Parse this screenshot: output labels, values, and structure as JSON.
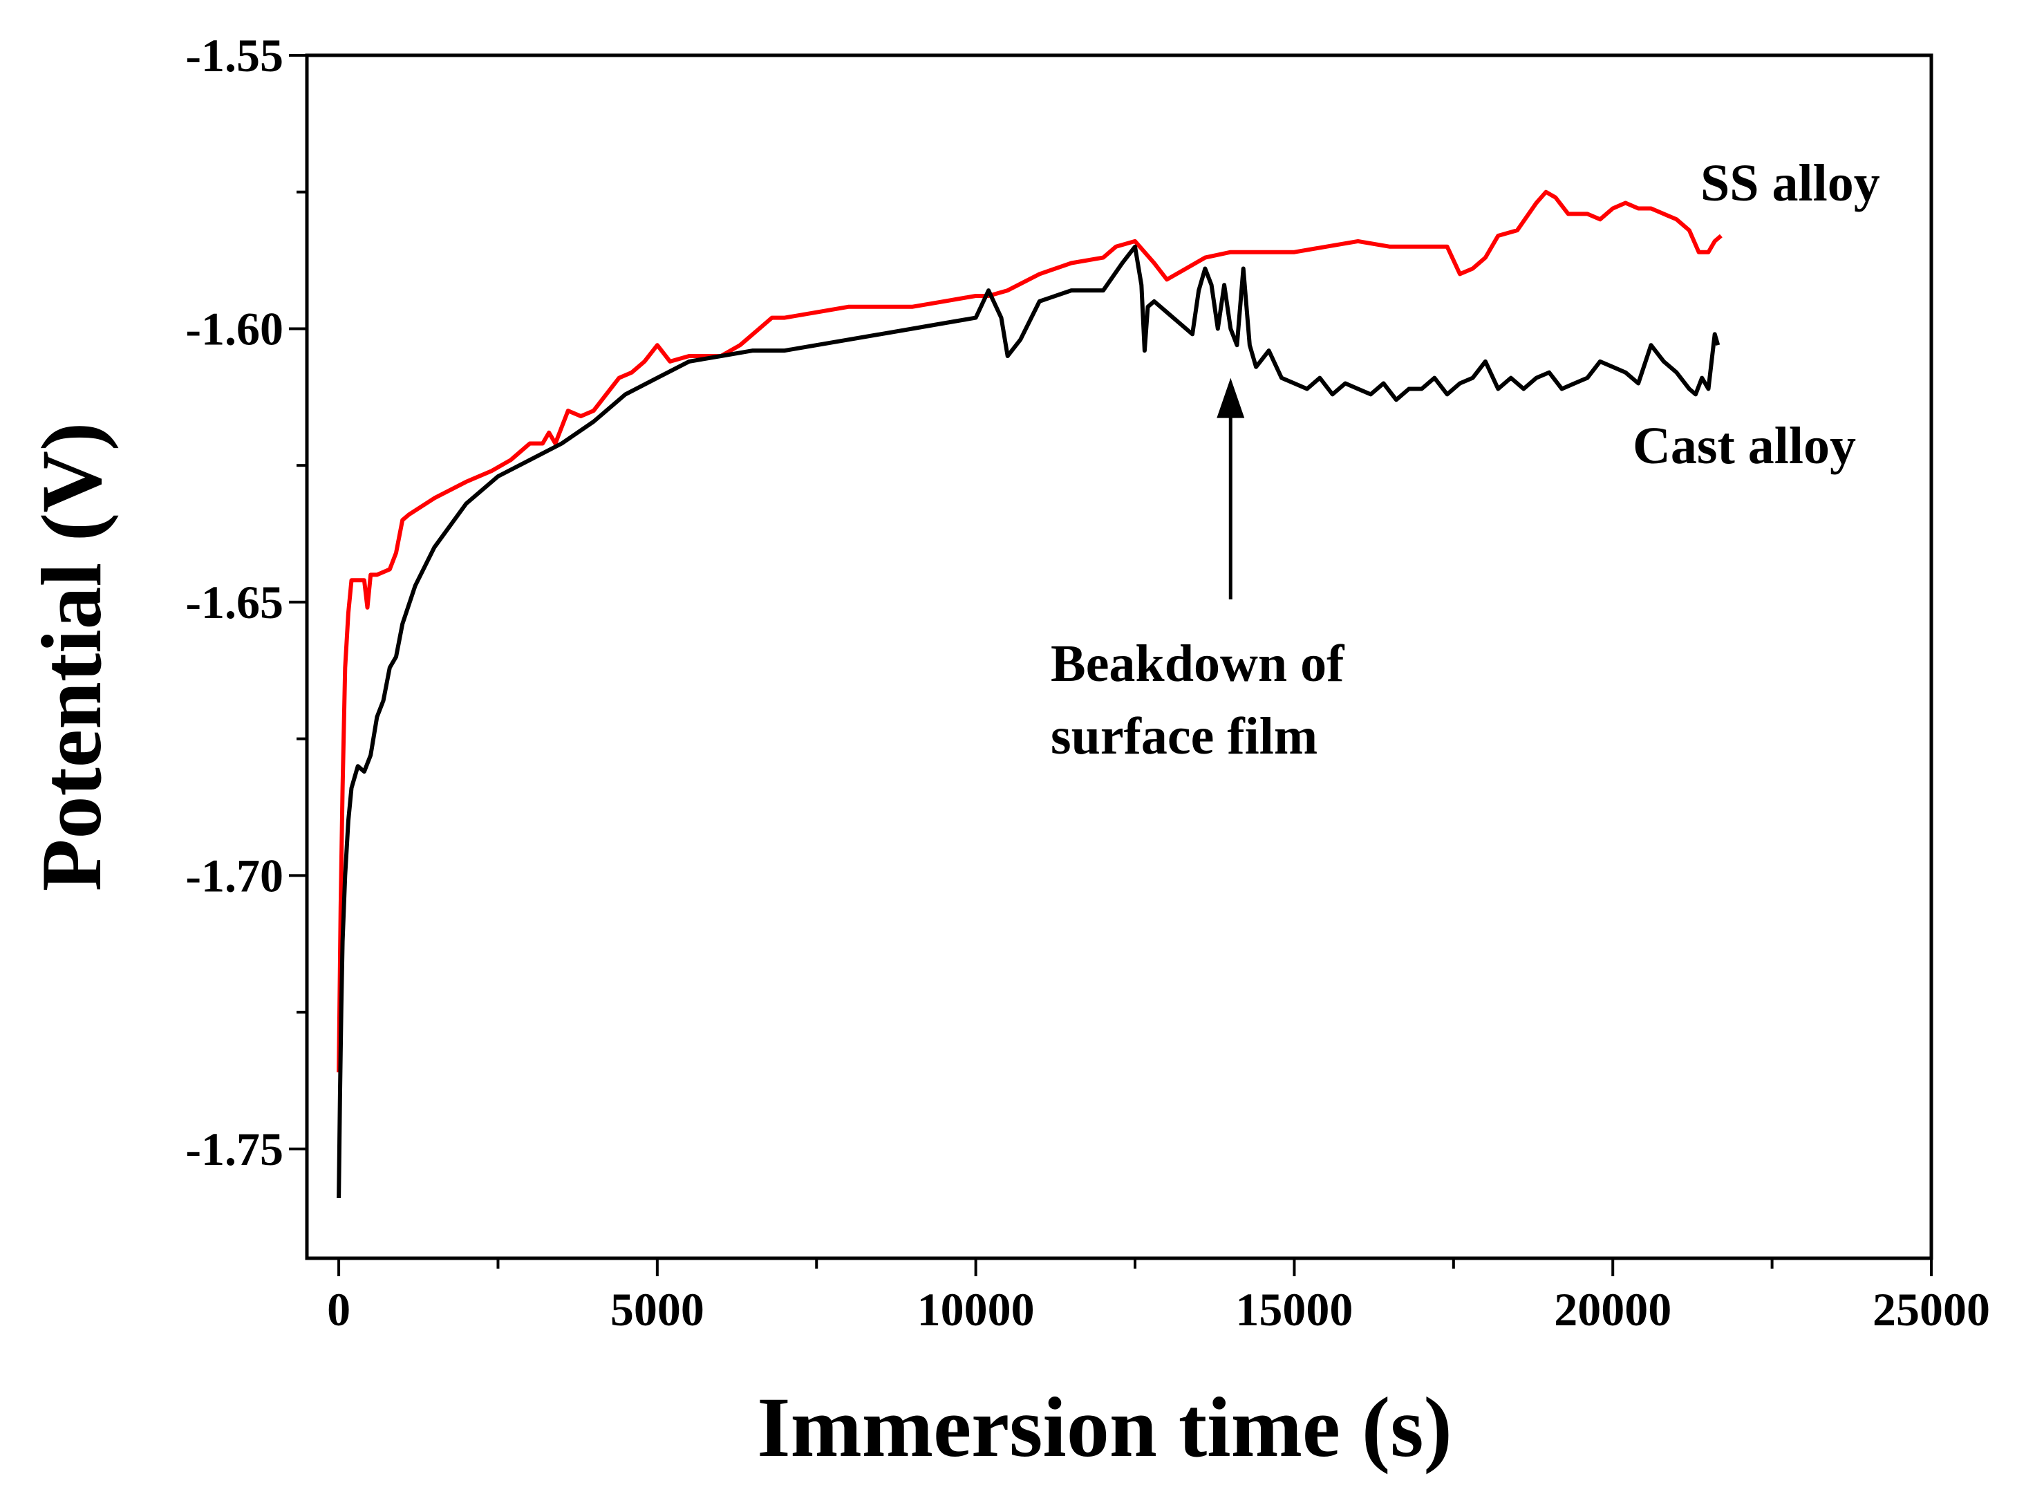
{
  "chart_data": {
    "type": "line",
    "title": "",
    "xlabel": "Immersion time (s)",
    "ylabel": "Potential (V)",
    "xlim": [
      -500,
      25000
    ],
    "ylim": [
      -1.77,
      -1.55
    ],
    "xticks": [
      {
        "value": 0,
        "label": "0"
      },
      {
        "value": 5000,
        "label": "5000"
      },
      {
        "value": 10000,
        "label": "10000"
      },
      {
        "value": 15000,
        "label": "15000"
      },
      {
        "value": 20000,
        "label": "20000"
      },
      {
        "value": 25000,
        "label": "25000"
      }
    ],
    "yticks": [
      {
        "value": -1.55,
        "label": "-1.55"
      },
      {
        "value": -1.6,
        "label": "-1.60"
      },
      {
        "value": -1.65,
        "label": "-1.65"
      },
      {
        "value": -1.7,
        "label": "-1.70"
      },
      {
        "value": -1.75,
        "label": "-1.75"
      }
    ],
    "x_minor_step": 2500,
    "y_minor_step": 0.025,
    "grid": false,
    "series": [
      {
        "name": "SS alloy",
        "label": "SS alloy",
        "color": "#ff0000",
        "x": [
          0,
          30,
          60,
          100,
          150,
          200,
          300,
          400,
          450,
          500,
          600,
          800,
          900,
          1000,
          1100,
          1500,
          2000,
          2400,
          2700,
          3000,
          3200,
          3300,
          3400,
          3600,
          3800,
          4000,
          4200,
          4400,
          4600,
          4800,
          5000,
          5200,
          5500,
          6000,
          6300,
          6600,
          6800,
          7000,
          7500,
          8000,
          8500,
          9000,
          9500,
          10000,
          10200,
          10500,
          11000,
          11500,
          12000,
          12200,
          12500,
          12800,
          13000,
          13300,
          13600,
          14000,
          14500,
          15000,
          15500,
          16000,
          16500,
          17000,
          17400,
          17600,
          17800,
          18000,
          18200,
          18500,
          18800,
          18950,
          19100,
          19300,
          19600,
          19800,
          20000,
          20200,
          20400,
          20600,
          20800,
          21000,
          21200,
          21350,
          21500,
          21600,
          21700
        ],
        "y": [
          -1.736,
          -1.706,
          -1.684,
          -1.662,
          -1.652,
          -1.646,
          -1.646,
          -1.646,
          -1.651,
          -1.645,
          -1.645,
          -1.644,
          -1.641,
          -1.635,
          -1.634,
          -1.631,
          -1.628,
          -1.626,
          -1.624,
          -1.621,
          -1.621,
          -1.619,
          -1.621,
          -1.615,
          -1.616,
          -1.615,
          -1.612,
          -1.609,
          -1.608,
          -1.606,
          -1.603,
          -1.606,
          -1.605,
          -1.605,
          -1.603,
          -1.6,
          -1.598,
          -1.598,
          -1.597,
          -1.596,
          -1.596,
          -1.596,
          -1.595,
          -1.594,
          -1.594,
          -1.593,
          -1.59,
          -1.588,
          -1.587,
          -1.585,
          -1.584,
          -1.588,
          -1.591,
          -1.589,
          -1.587,
          -1.586,
          -1.586,
          -1.586,
          -1.585,
          -1.584,
          -1.585,
          -1.585,
          -1.585,
          -1.59,
          -1.589,
          -1.587,
          -1.583,
          -1.582,
          -1.577,
          -1.575,
          -1.576,
          -1.579,
          -1.579,
          -1.58,
          -1.578,
          -1.577,
          -1.578,
          -1.578,
          -1.579,
          -1.58,
          -1.582,
          -1.586,
          -1.586,
          -1.584,
          -1.583
        ]
      },
      {
        "name": "Cast alloy",
        "label": "Cast alloy",
        "color": "#000000",
        "x": [
          0,
          20,
          40,
          60,
          100,
          150,
          200,
          300,
          400,
          500,
          600,
          700,
          800,
          900,
          1000,
          1200,
          1500,
          2000,
          2500,
          3000,
          3500,
          4000,
          4500,
          5000,
          5500,
          6000,
          6500,
          7000,
          7500,
          8000,
          8500,
          9000,
          9500,
          10000,
          10200,
          10400,
          10500,
          10700,
          11000,
          11500,
          12000,
          12300,
          12500,
          12600,
          12650,
          12700,
          12800,
          13000,
          13200,
          13400,
          13500,
          13600,
          13700,
          13800,
          13900,
          14000,
          14100,
          14200,
          14300,
          14400,
          14600,
          14800,
          15000,
          15200,
          15400,
          15600,
          15800,
          16000,
          16200,
          16400,
          16600,
          16800,
          17000,
          17200,
          17400,
          17600,
          17800,
          18000,
          18200,
          18400,
          18600,
          18800,
          19000,
          19200,
          19400,
          19600,
          19800,
          20000,
          20200,
          20400,
          20600,
          20800,
          21000,
          21200,
          21300,
          21400,
          21500,
          21550,
          21600,
          21650
        ],
        "y": [
          -1.759,
          -1.74,
          -1.724,
          -1.712,
          -1.7,
          -1.69,
          -1.684,
          -1.68,
          -1.681,
          -1.678,
          -1.671,
          -1.668,
          -1.662,
          -1.66,
          -1.654,
          -1.647,
          -1.64,
          -1.632,
          -1.627,
          -1.624,
          -1.621,
          -1.617,
          -1.612,
          -1.609,
          -1.606,
          -1.605,
          -1.604,
          -1.604,
          -1.603,
          -1.602,
          -1.601,
          -1.6,
          -1.599,
          -1.598,
          -1.593,
          -1.598,
          -1.605,
          -1.602,
          -1.595,
          -1.593,
          -1.593,
          -1.588,
          -1.585,
          -1.592,
          -1.604,
          -1.596,
          -1.595,
          -1.597,
          -1.599,
          -1.601,
          -1.593,
          -1.589,
          -1.592,
          -1.6,
          -1.592,
          -1.6,
          -1.603,
          -1.589,
          -1.603,
          -1.607,
          -1.604,
          -1.609,
          -1.61,
          -1.611,
          -1.609,
          -1.612,
          -1.61,
          -1.611,
          -1.612,
          -1.61,
          -1.613,
          -1.611,
          -1.611,
          -1.609,
          -1.612,
          -1.61,
          -1.609,
          -1.606,
          -1.611,
          -1.609,
          -1.611,
          -1.609,
          -1.608,
          -1.611,
          -1.61,
          -1.609,
          -1.606,
          -1.607,
          -1.608,
          -1.61,
          -1.603,
          -1.606,
          -1.608,
          -1.611,
          -1.612,
          -1.609,
          -1.611,
          -1.606,
          -1.601,
          -1.603
        ]
      }
    ],
    "annotations": [
      {
        "name": "breakdown",
        "lines": [
          "Beakdown of",
          "surface film"
        ],
        "arrow_x": 14000,
        "arrow_tip_y": -1.609,
        "arrow_tail_y": -1.6495
      }
    ]
  }
}
